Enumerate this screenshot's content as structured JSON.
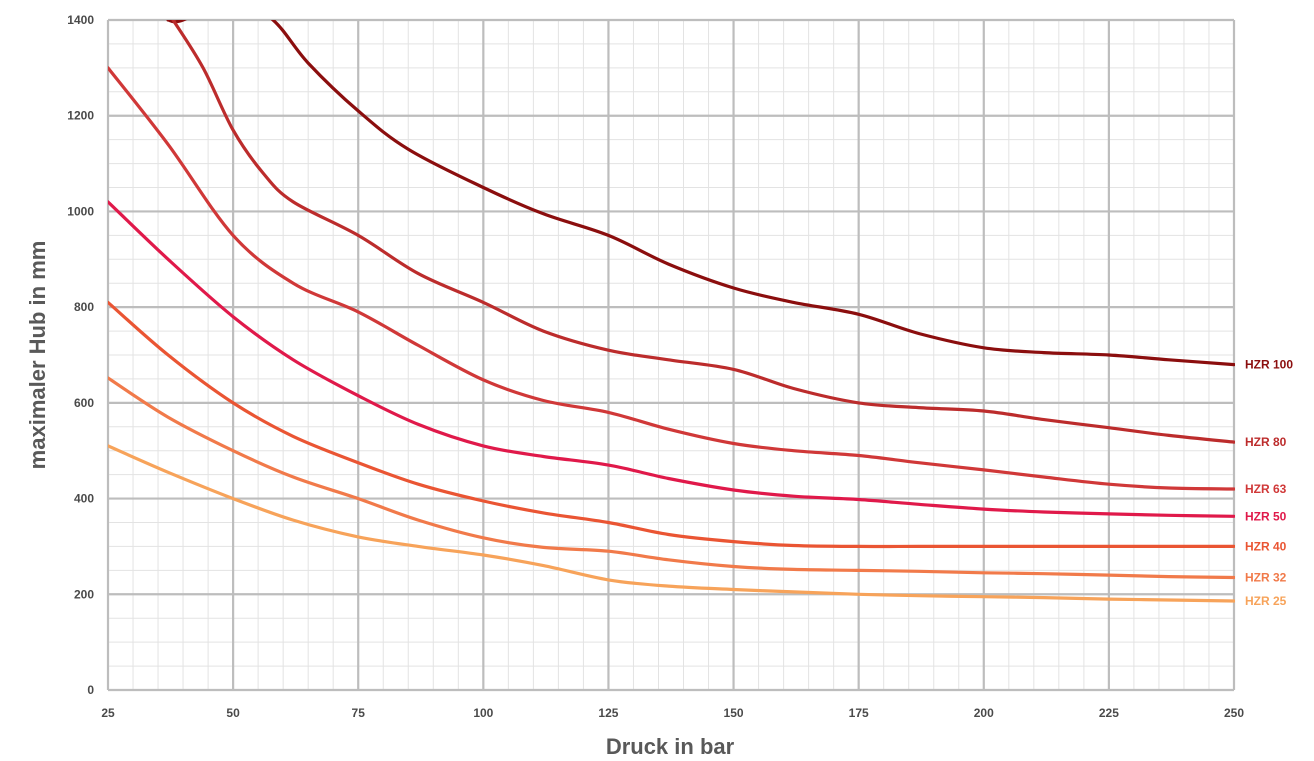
{
  "chart_data": {
    "type": "line",
    "title": "",
    "xlabel": "Druck in bar",
    "ylabel": "maximaler Hub in mm",
    "xlim": [
      25,
      250
    ],
    "ylim": [
      0,
      1400
    ],
    "x_ticks": [
      "25",
      "50",
      "75",
      "100",
      "125",
      "150",
      "175",
      "200",
      "225",
      "250"
    ],
    "y_ticks": [
      "0",
      "200",
      "400",
      "600",
      "800",
      "1000",
      "1200",
      "1400"
    ],
    "grid": true,
    "legend": "series labels at right end of each line",
    "series": [
      {
        "name": "HZR 100",
        "color": "#8b0e0e",
        "points": [
          [
            37,
            1400
          ],
          [
            40,
            1400
          ],
          [
            50,
            1450
          ],
          [
            58,
            1400
          ],
          [
            65,
            1310
          ],
          [
            75,
            1210
          ],
          [
            85,
            1130
          ],
          [
            100,
            1050
          ],
          [
            112,
            995
          ],
          [
            125,
            950
          ],
          [
            137,
            890
          ],
          [
            150,
            840
          ],
          [
            162,
            810
          ],
          [
            175,
            785
          ],
          [
            187,
            745
          ],
          [
            200,
            715
          ],
          [
            212,
            705
          ],
          [
            225,
            700
          ],
          [
            237,
            690
          ],
          [
            250,
            680
          ]
        ]
      },
      {
        "name": "HZR 80",
        "color": "#bc2c2c",
        "points": [
          [
            38,
            1400
          ],
          [
            44,
            1300
          ],
          [
            50,
            1170
          ],
          [
            56,
            1080
          ],
          [
            62,
            1020
          ],
          [
            75,
            950
          ],
          [
            87,
            870
          ],
          [
            100,
            810
          ],
          [
            112,
            750
          ],
          [
            125,
            710
          ],
          [
            137,
            690
          ],
          [
            150,
            670
          ],
          [
            162,
            630
          ],
          [
            175,
            600
          ],
          [
            187,
            590
          ],
          [
            200,
            583
          ],
          [
            212,
            565
          ],
          [
            225,
            548
          ],
          [
            237,
            532
          ],
          [
            250,
            518
          ]
        ]
      },
      {
        "name": "HZR 63",
        "color": "#d03838",
        "points": [
          [
            25,
            1300
          ],
          [
            37,
            1140
          ],
          [
            50,
            950
          ],
          [
            62,
            850
          ],
          [
            75,
            790
          ],
          [
            87,
            720
          ],
          [
            100,
            648
          ],
          [
            112,
            605
          ],
          [
            125,
            580
          ],
          [
            137,
            545
          ],
          [
            150,
            515
          ],
          [
            162,
            500
          ],
          [
            175,
            490
          ],
          [
            187,
            475
          ],
          [
            200,
            460
          ],
          [
            212,
            445
          ],
          [
            225,
            430
          ],
          [
            237,
            422
          ],
          [
            250,
            420
          ]
        ]
      },
      {
        "name": "HZR 50",
        "color": "#e0194a",
        "points": [
          [
            25,
            1020
          ],
          [
            37,
            900
          ],
          [
            50,
            780
          ],
          [
            62,
            690
          ],
          [
            75,
            615
          ],
          [
            87,
            555
          ],
          [
            100,
            510
          ],
          [
            112,
            488
          ],
          [
            125,
            470
          ],
          [
            137,
            442
          ],
          [
            150,
            418
          ],
          [
            162,
            405
          ],
          [
            175,
            398
          ],
          [
            187,
            388
          ],
          [
            200,
            378
          ],
          [
            212,
            372
          ],
          [
            225,
            368
          ],
          [
            237,
            365
          ],
          [
            250,
            363
          ]
        ]
      },
      {
        "name": "HZR 40",
        "color": "#ea5533",
        "points": [
          [
            25,
            810
          ],
          [
            37,
            700
          ],
          [
            50,
            600
          ],
          [
            62,
            530
          ],
          [
            75,
            475
          ],
          [
            87,
            430
          ],
          [
            100,
            395
          ],
          [
            112,
            370
          ],
          [
            125,
            350
          ],
          [
            137,
            325
          ],
          [
            150,
            310
          ],
          [
            162,
            302
          ],
          [
            175,
            300
          ],
          [
            187,
            300
          ],
          [
            200,
            300
          ],
          [
            212,
            300
          ],
          [
            225,
            300
          ],
          [
            237,
            300
          ],
          [
            250,
            300
          ]
        ]
      },
      {
        "name": "HZR 32",
        "color": "#f17a4a",
        "points": [
          [
            25,
            652
          ],
          [
            37,
            570
          ],
          [
            50,
            500
          ],
          [
            62,
            445
          ],
          [
            75,
            400
          ],
          [
            87,
            355
          ],
          [
            100,
            318
          ],
          [
            112,
            298
          ],
          [
            125,
            290
          ],
          [
            137,
            272
          ],
          [
            150,
            258
          ],
          [
            162,
            252
          ],
          [
            175,
            250
          ],
          [
            187,
            248
          ],
          [
            200,
            245
          ],
          [
            212,
            243
          ],
          [
            225,
            240
          ],
          [
            237,
            237
          ],
          [
            250,
            235
          ]
        ]
      },
      {
        "name": "HZR 25",
        "color": "#f7a35a",
        "points": [
          [
            25,
            510
          ],
          [
            37,
            455
          ],
          [
            50,
            400
          ],
          [
            62,
            355
          ],
          [
            75,
            320
          ],
          [
            87,
            300
          ],
          [
            100,
            282
          ],
          [
            112,
            260
          ],
          [
            125,
            230
          ],
          [
            137,
            217
          ],
          [
            150,
            210
          ],
          [
            162,
            205
          ],
          [
            175,
            200
          ],
          [
            187,
            197
          ],
          [
            200,
            195
          ],
          [
            212,
            193
          ],
          [
            225,
            190
          ],
          [
            237,
            188
          ],
          [
            250,
            186
          ]
        ]
      }
    ]
  }
}
